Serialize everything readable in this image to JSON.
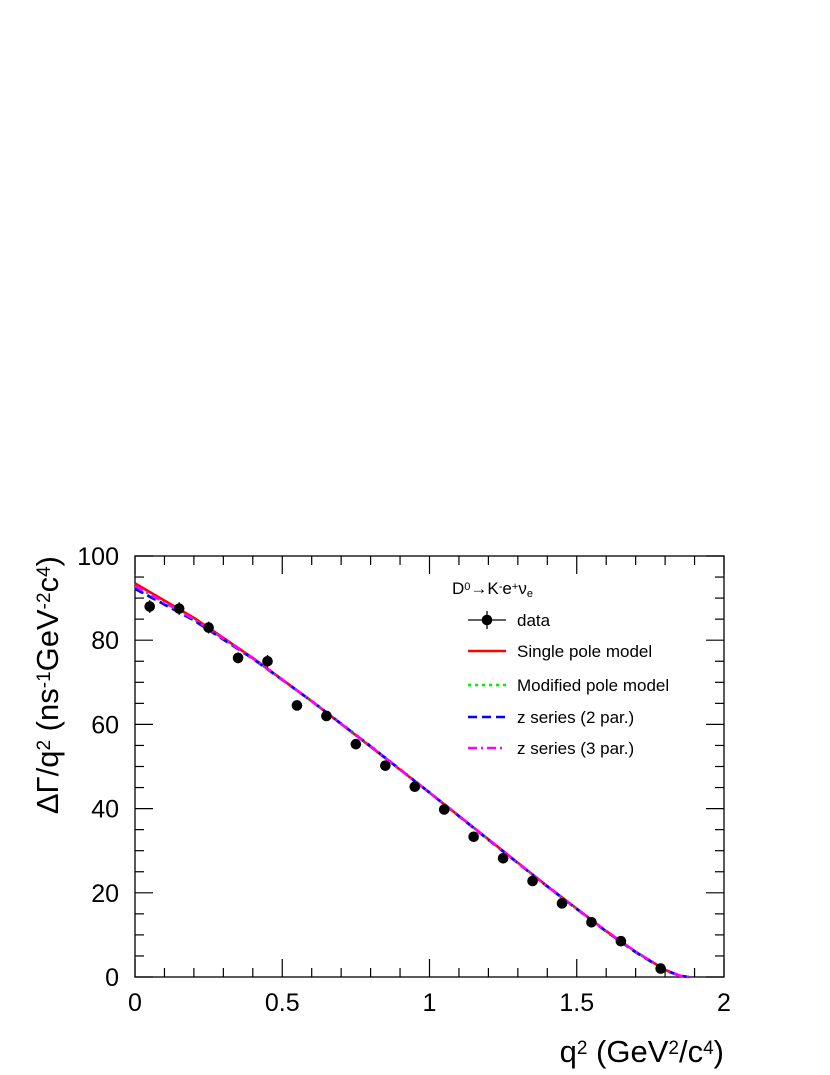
{
  "chart_data": {
    "type": "line",
    "xlim": [
      0,
      2
    ],
    "ylim": [
      0,
      100
    ],
    "x_ticks": [
      0,
      0.5,
      1,
      1.5,
      2
    ],
    "x_tick_labels": [
      "0",
      "0.5",
      "1",
      "1.5",
      "2"
    ],
    "y_ticks": [
      0,
      20,
      40,
      60,
      80,
      100
    ],
    "y_tick_labels": [
      "0",
      "20",
      "40",
      "60",
      "80",
      "100"
    ],
    "xlabel_parts": [
      "q",
      "2",
      " (GeV",
      "2",
      "/c",
      "4",
      ")"
    ],
    "ylabel_parts": [
      "Δ",
      "Γ",
      "/q",
      "2",
      " (ns",
      "-1",
      "GeV",
      "-2",
      "c",
      "4",
      ")"
    ],
    "legend_position": "top-right",
    "legend_title_parts": [
      "D",
      "0",
      "→K",
      "-",
      "e",
      "+",
      "ν",
      "e"
    ],
    "grid": false,
    "data_points": {
      "name": "data",
      "color": "#000000",
      "x": [
        0.05,
        0.15,
        0.25,
        0.35,
        0.45,
        0.55,
        0.65,
        0.75,
        0.85,
        0.95,
        1.05,
        1.15,
        1.25,
        1.35,
        1.45,
        1.55,
        1.65,
        1.785
      ],
      "y": [
        88.0,
        87.5,
        83.0,
        75.8,
        75.0,
        64.5,
        62.0,
        55.3,
        50.2,
        45.2,
        39.8,
        33.3,
        28.2,
        22.8,
        17.5,
        13.0,
        8.5,
        2.0
      ],
      "yerr": [
        1.5,
        1.5,
        1.4,
        1.3,
        1.5,
        1.2,
        1.2,
        1.1,
        1.1,
        1.0,
        1.0,
        0.9,
        0.9,
        0.8,
        0.8,
        0.7,
        0.7,
        0.6
      ]
    },
    "series": [
      {
        "name": "Single pole model",
        "color": "#ff0000",
        "style": "solid",
        "x": [
          0.0,
          0.2,
          0.4,
          0.6,
          0.8,
          1.0,
          1.2,
          1.4,
          1.6,
          1.7,
          1.8,
          1.85,
          1.88
        ],
        "y": [
          93.5,
          85.3,
          75.8,
          65.5,
          54.7,
          43.8,
          32.7,
          21.6,
          10.9,
          6.0,
          1.7,
          0.3,
          0.0
        ]
      },
      {
        "name": "Modified pole model",
        "color": "#00ee00",
        "style": "dotted",
        "x": [
          0.0,
          0.2,
          0.4,
          0.6,
          0.8,
          1.0,
          1.2,
          1.4,
          1.6,
          1.7,
          1.8,
          1.85,
          1.88
        ],
        "y": [
          92.3,
          84.8,
          75.7,
          65.6,
          54.9,
          43.9,
          32.7,
          21.5,
          10.8,
          5.9,
          1.6,
          0.3,
          0.0
        ]
      },
      {
        "name": "z series (2 par.)",
        "color": "#0000ff",
        "style": "dashed",
        "x": [
          0.0,
          0.2,
          0.4,
          0.6,
          0.8,
          1.0,
          1.2,
          1.4,
          1.6,
          1.7,
          1.8,
          1.85,
          1.88
        ],
        "y": [
          92.2,
          84.7,
          75.6,
          65.5,
          54.8,
          43.8,
          32.6,
          21.5,
          10.8,
          5.9,
          1.6,
          0.3,
          0.0
        ]
      },
      {
        "name": "z series (3 par.)",
        "color": "#ff00ff",
        "style": "dashdot",
        "x": [
          0.0,
          0.2,
          0.4,
          0.6,
          0.8,
          1.0,
          1.2,
          1.4,
          1.6,
          1.7,
          1.8,
          1.85,
          1.88
        ],
        "y": [
          92.9,
          85.0,
          75.7,
          65.5,
          54.8,
          43.8,
          32.7,
          21.5,
          10.9,
          6.0,
          1.7,
          0.3,
          0.0
        ]
      }
    ]
  }
}
